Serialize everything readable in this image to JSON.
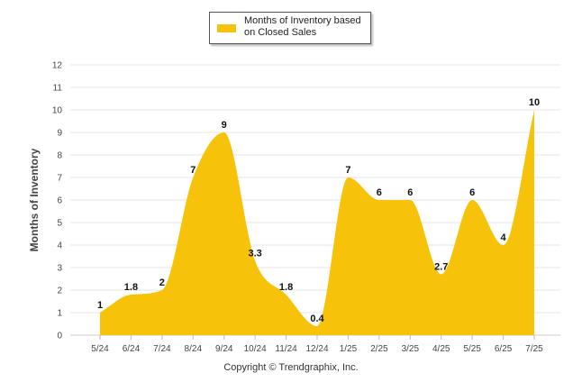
{
  "chart_data": {
    "type": "area",
    "categories": [
      "5/24",
      "6/24",
      "7/24",
      "8/24",
      "9/24",
      "10/24",
      "11/24",
      "12/24",
      "1/25",
      "2/25",
      "3/25",
      "4/25",
      "5/25",
      "6/25",
      "7/25"
    ],
    "series": [
      {
        "name": "Months of Inventory based on Closed Sales",
        "values": [
          1,
          1.8,
          2,
          7,
          9,
          3.3,
          1.8,
          0.4,
          7,
          6,
          6,
          2.7,
          6,
          4,
          10
        ]
      }
    ],
    "data_labels": [
      "1",
      "1.8",
      "2",
      "7",
      "9",
      "3.3",
      "1.8",
      "0.4",
      "7",
      "6",
      "6",
      "2.7",
      "6",
      "4",
      "10"
    ],
    "ylabel": "Months of Inventory",
    "ylim": [
      0,
      12
    ],
    "yticks": [
      0,
      1,
      2,
      3,
      4,
      5,
      6,
      7,
      8,
      9,
      10,
      11,
      12
    ],
    "grid": true,
    "legend_position": "top-center",
    "colors": {
      "area": "#F7C20A",
      "grid": "#e6e6e6"
    }
  },
  "footer": {
    "copyright": "Copyright © Trendgraphix, Inc."
  }
}
